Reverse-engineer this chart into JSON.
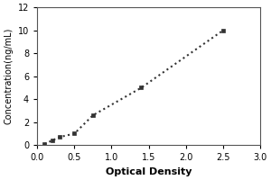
{
  "x_data": [
    0.1,
    0.2,
    0.3,
    0.5,
    0.75,
    1.4,
    2.5
  ],
  "y_data": [
    0.1,
    0.4,
    0.7,
    1.0,
    2.6,
    5.0,
    10.0
  ],
  "xlabel": "Optical Density",
  "ylabel": "Concentration(ng/mL)",
  "xlim": [
    0,
    3
  ],
  "ylim": [
    0,
    12
  ],
  "xticks": [
    0,
    0.5,
    1,
    1.5,
    2,
    2.5,
    3
  ],
  "yticks": [
    0,
    2,
    4,
    6,
    8,
    10,
    12
  ],
  "line_color": "#333333",
  "marker": "s",
  "marker_size": 3,
  "linestyle": "dotted",
  "linewidth": 1.5,
  "background_color": "#ffffff",
  "border_color": "#555555",
  "xlabel_fontsize": 8,
  "ylabel_fontsize": 7,
  "tick_fontsize": 7
}
